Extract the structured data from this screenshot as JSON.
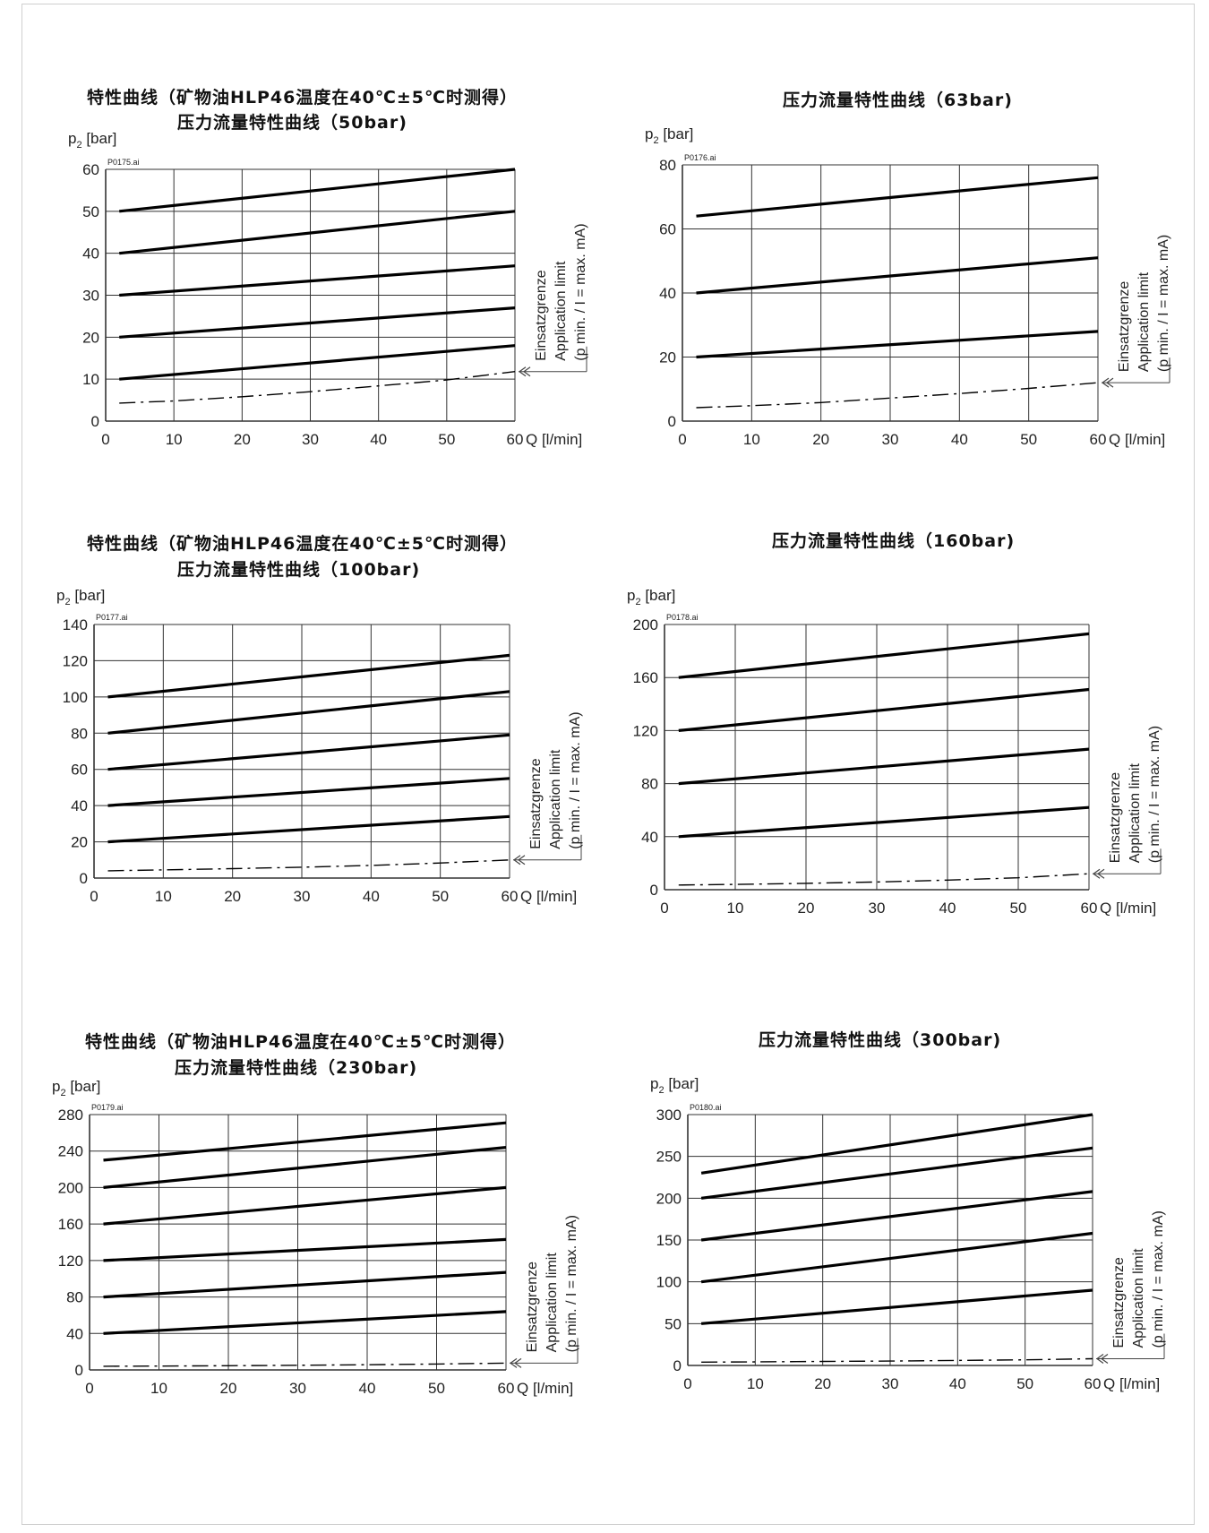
{
  "chart_data": [
    {
      "type": "line",
      "title_lines": [
        "特性曲线（矿物油HLP46温度在40℃±5℃时测得）",
        "压力流量特性曲线（50bar)"
      ],
      "file_tag": "P0175.ai",
      "ylabel_main": "p",
      "ylabel_sub": "2",
      "ylabel_unit": " [bar]",
      "xlabel": "Q [l/min]",
      "xlim": [
        0,
        60
      ],
      "ylim": [
        0,
        60
      ],
      "x_ticks": [
        "0",
        "10",
        "20",
        "30",
        "40",
        "50",
        "60"
      ],
      "y_ticks": [
        "0",
        "10",
        "20",
        "30",
        "40",
        "50",
        "60"
      ],
      "grid": true,
      "limit_label": [
        "Einsatzgrenze",
        "Application limit",
        "(p min. / I = max. mA)"
      ],
      "series": [
        {
          "x": [
            2,
            60
          ],
          "y": [
            10,
            18
          ],
          "style": "solid"
        },
        {
          "x": [
            2,
            60
          ],
          "y": [
            20,
            27
          ],
          "style": "solid"
        },
        {
          "x": [
            2,
            60
          ],
          "y": [
            30,
            37
          ],
          "style": "solid"
        },
        {
          "x": [
            2,
            60
          ],
          "y": [
            40,
            50
          ],
          "style": "solid"
        },
        {
          "x": [
            2,
            60
          ],
          "y": [
            50,
            60
          ],
          "style": "solid"
        },
        {
          "x": [
            2,
            10,
            20,
            30,
            40,
            50,
            60
          ],
          "y": [
            4.3,
            4.8,
            5.8,
            7,
            8.4,
            9.8,
            11.8
          ],
          "style": "dashdot"
        }
      ]
    },
    {
      "type": "line",
      "title_lines": [
        "压力流量特性曲线（63bar)"
      ],
      "file_tag": "P0176.ai",
      "ylabel_main": "p",
      "ylabel_sub": "2",
      "ylabel_unit": " [bar]",
      "xlabel": "Q [l/min]",
      "xlim": [
        0,
        60
      ],
      "ylim": [
        0,
        80
      ],
      "x_ticks": [
        "0",
        "10",
        "20",
        "30",
        "40",
        "50",
        "60"
      ],
      "y_ticks": [
        "0",
        "20",
        "40",
        "60",
        "80"
      ],
      "grid": true,
      "limit_label": [
        "Einsatzgrenze",
        "Application limit",
        "(p min. / I = max. mA)"
      ],
      "series": [
        {
          "x": [
            2,
            60
          ],
          "y": [
            20,
            28
          ],
          "style": "solid"
        },
        {
          "x": [
            2,
            60
          ],
          "y": [
            40,
            51
          ],
          "style": "solid"
        },
        {
          "x": [
            2,
            60
          ],
          "y": [
            64,
            76
          ],
          "style": "solid"
        },
        {
          "x": [
            2,
            10,
            20,
            30,
            40,
            50,
            60
          ],
          "y": [
            4.2,
            4.8,
            5.8,
            7.2,
            8.6,
            10.2,
            12
          ],
          "style": "dashdot"
        }
      ]
    },
    {
      "type": "line",
      "title_lines": [
        "特性曲线（矿物油HLP46温度在40℃±5℃时测得）",
        "压力流量特性曲线（100bar)"
      ],
      "file_tag": "P0177.ai",
      "ylabel_main": "p",
      "ylabel_sub": "2",
      "ylabel_unit": " [bar]",
      "xlabel": "Q [l/min]",
      "xlim": [
        0,
        60
      ],
      "ylim": [
        0,
        140
      ],
      "x_ticks": [
        "0",
        "10",
        "20",
        "30",
        "40",
        "50",
        "60"
      ],
      "y_ticks": [
        "0",
        "20",
        "40",
        "60",
        "80",
        "100",
        "120",
        "140"
      ],
      "grid": true,
      "limit_label": [
        "Einsatzgrenze",
        "Application limit",
        "(p min. / I = max. mA)"
      ],
      "series": [
        {
          "x": [
            2,
            60
          ],
          "y": [
            20,
            34
          ],
          "style": "solid"
        },
        {
          "x": [
            2,
            60
          ],
          "y": [
            40,
            55
          ],
          "style": "solid"
        },
        {
          "x": [
            2,
            60
          ],
          "y": [
            60,
            79
          ],
          "style": "solid"
        },
        {
          "x": [
            2,
            60
          ],
          "y": [
            80,
            103
          ],
          "style": "solid"
        },
        {
          "x": [
            2,
            60
          ],
          "y": [
            100,
            123
          ],
          "style": "solid"
        },
        {
          "x": [
            2,
            10,
            20,
            30,
            40,
            50,
            60
          ],
          "y": [
            4,
            4.5,
            5.2,
            6,
            7,
            8.3,
            10
          ],
          "style": "dashdot"
        }
      ]
    },
    {
      "type": "line",
      "title_lines": [
        "压力流量特性曲线（160bar)"
      ],
      "file_tag": "P0178.ai",
      "ylabel_main": "p",
      "ylabel_sub": "2",
      "ylabel_unit": " [bar]",
      "xlabel": "Q [l/min]",
      "xlim": [
        0,
        60
      ],
      "ylim": [
        0,
        200
      ],
      "x_ticks": [
        "0",
        "10",
        "20",
        "30",
        "40",
        "50",
        "60"
      ],
      "y_ticks": [
        "0",
        "40",
        "80",
        "120",
        "160",
        "200"
      ],
      "grid": true,
      "limit_label": [
        "Einsatzgrenze",
        "Application limit",
        "(p min. / I = max. mA)"
      ],
      "series": [
        {
          "x": [
            2,
            60
          ],
          "y": [
            40,
            62
          ],
          "style": "solid"
        },
        {
          "x": [
            2,
            60
          ],
          "y": [
            80,
            106
          ],
          "style": "solid"
        },
        {
          "x": [
            2,
            60
          ],
          "y": [
            120,
            151
          ],
          "style": "solid"
        },
        {
          "x": [
            2,
            60
          ],
          "y": [
            160,
            193
          ],
          "style": "solid"
        },
        {
          "x": [
            2,
            10,
            20,
            30,
            40,
            50,
            60
          ],
          "y": [
            3.5,
            4,
            4.8,
            5.8,
            7.2,
            9,
            12
          ],
          "style": "dashdot"
        }
      ]
    },
    {
      "type": "line",
      "title_lines": [
        "特性曲线（矿物油HLP46温度在40℃±5℃时测得）",
        "压力流量特性曲线（230bar)"
      ],
      "file_tag": "P0179.ai",
      "ylabel_main": "p",
      "ylabel_sub": "2",
      "ylabel_unit": " [bar]",
      "xlabel": "Q [l/min]",
      "xlim": [
        0,
        60
      ],
      "ylim": [
        0,
        280
      ],
      "x_ticks": [
        "0",
        "10",
        "20",
        "30",
        "40",
        "50",
        "60"
      ],
      "y_ticks": [
        "0",
        "40",
        "80",
        "120",
        "160",
        "200",
        "240",
        "280"
      ],
      "grid": true,
      "limit_label": [
        "Einsatzgrenze",
        "Application limit",
        "(p min. / I = max. mA)"
      ],
      "series": [
        {
          "x": [
            2,
            60
          ],
          "y": [
            40,
            64
          ],
          "style": "solid"
        },
        {
          "x": [
            2,
            60
          ],
          "y": [
            80,
            107
          ],
          "style": "solid"
        },
        {
          "x": [
            2,
            60
          ],
          "y": [
            120,
            143
          ],
          "style": "solid"
        },
        {
          "x": [
            2,
            60
          ],
          "y": [
            160,
            200
          ],
          "style": "solid"
        },
        {
          "x": [
            2,
            60
          ],
          "y": [
            200,
            244
          ],
          "style": "solid"
        },
        {
          "x": [
            2,
            60
          ],
          "y": [
            230,
            271
          ],
          "style": "solid"
        },
        {
          "x": [
            2,
            10,
            20,
            30,
            40,
            50,
            60
          ],
          "y": [
            4,
            4.2,
            4.6,
            5.1,
            5.7,
            6.5,
            7.5
          ],
          "style": "dashdot"
        }
      ]
    },
    {
      "type": "line",
      "title_lines": [
        "压力流量特性曲线（300bar)"
      ],
      "file_tag": "P0180.ai",
      "ylabel_main": "p",
      "ylabel_sub": "2",
      "ylabel_unit": " [bar]",
      "xlabel": "Q [l/min]",
      "xlim": [
        0,
        60
      ],
      "ylim": [
        0,
        300
      ],
      "x_ticks": [
        "0",
        "10",
        "20",
        "30",
        "40",
        "50",
        "60"
      ],
      "y_ticks": [
        "0",
        "50",
        "100",
        "150",
        "200",
        "250",
        "300"
      ],
      "grid": true,
      "limit_label": [
        "Einsatzgrenze",
        "Application limit",
        "(p min. / I = max. mA)"
      ],
      "series": [
        {
          "x": [
            2,
            60
          ],
          "y": [
            50,
            90
          ],
          "style": "solid"
        },
        {
          "x": [
            2,
            60
          ],
          "y": [
            100,
            158
          ],
          "style": "solid"
        },
        {
          "x": [
            2,
            60
          ],
          "y": [
            150,
            208
          ],
          "style": "solid"
        },
        {
          "x": [
            2,
            60
          ],
          "y": [
            200,
            260
          ],
          "style": "solid"
        },
        {
          "x": [
            2,
            60
          ],
          "y": [
            230,
            300
          ],
          "style": "solid"
        },
        {
          "x": [
            2,
            10,
            20,
            30,
            40,
            50,
            60
          ],
          "y": [
            4,
            4.3,
            4.8,
            5.3,
            6,
            6.8,
            8
          ],
          "style": "dashdot"
        }
      ]
    }
  ]
}
